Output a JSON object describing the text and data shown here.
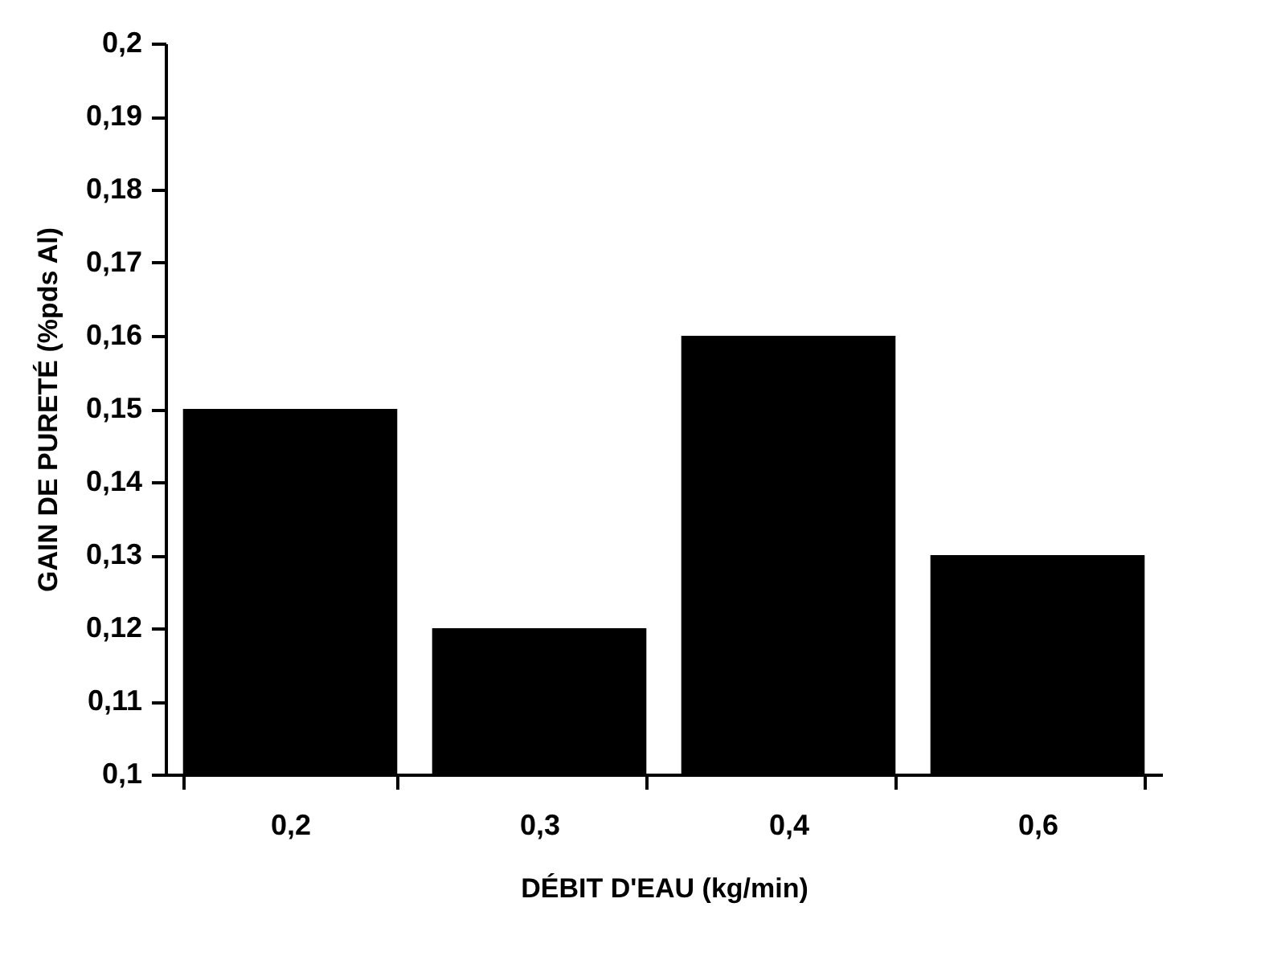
{
  "chart_data": {
    "type": "bar",
    "xlabel": "DÉBIT  D'EAU     (kg/min)",
    "ylabel": "GAIN DE PURETÉ     (%pds Al)",
    "categories": [
      "0,2",
      "0,3",
      "0,4",
      "0,6"
    ],
    "values": [
      0.15,
      0.12,
      0.16,
      0.13
    ],
    "color": "#000000",
    "ylim": [
      0.1,
      0.2
    ],
    "yticks": [
      {
        "value": 0.1,
        "label": "0,1"
      },
      {
        "value": 0.11,
        "label": "0,11"
      },
      {
        "value": 0.12,
        "label": "0,12"
      },
      {
        "value": 0.13,
        "label": "0,13"
      },
      {
        "value": 0.14,
        "label": "0,14"
      },
      {
        "value": 0.15,
        "label": "0,15"
      },
      {
        "value": 0.16,
        "label": "0,16"
      },
      {
        "value": 0.17,
        "label": "0,17"
      },
      {
        "value": 0.18,
        "label": "0,18"
      },
      {
        "value": 0.19,
        "label": "0,19"
      },
      {
        "value": 0.2,
        "label": "0,2"
      }
    ],
    "grid": false
  }
}
